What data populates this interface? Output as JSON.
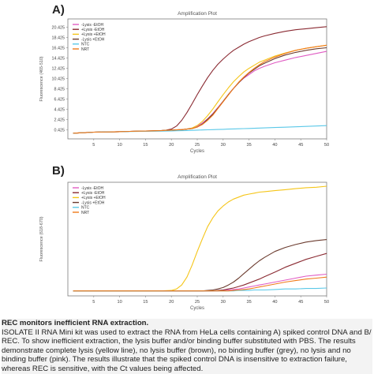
{
  "chart_data": [
    {
      "panel_label": "A)",
      "type": "line",
      "title": "Amplification Plot",
      "xlabel": "Cycles",
      "ylabel": "Fluorescence (465-510)",
      "xlim": [
        0,
        50
      ],
      "ylim": [
        -1.3,
        22
      ],
      "xticks": [
        "5",
        "10",
        "15",
        "20",
        "25",
        "30",
        "35",
        "40",
        "45",
        "50"
      ],
      "yticks": [
        "0.425",
        "2.425",
        "4.425",
        "6.425",
        "8.425",
        "10.425",
        "12.425",
        "14.425",
        "16.425",
        "18.425",
        "20.425"
      ],
      "legend_position": "top-left",
      "x": [
        1,
        3,
        5,
        8,
        10,
        12,
        14,
        16,
        18,
        19,
        20,
        21,
        22,
        23,
        24,
        25,
        26,
        27,
        28,
        29,
        30,
        31,
        32,
        33,
        34,
        35,
        36,
        37,
        38,
        40,
        42,
        44,
        46,
        48,
        50
      ],
      "series": [
        {
          "name": "-Lysis -EtOH",
          "color": "#e05cc3",
          "values": [
            -0.2,
            -0.1,
            0,
            0.05,
            0.1,
            0.15,
            0.2,
            0.25,
            0.3,
            0.35,
            0.4,
            0.45,
            0.5,
            0.6,
            0.8,
            1.2,
            1.8,
            2.6,
            3.6,
            4.8,
            6.0,
            7.3,
            8.5,
            9.6,
            10.5,
            11.2,
            11.9,
            12.4,
            12.8,
            13.5,
            14.0,
            14.5,
            14.9,
            15.3,
            15.7
          ]
        },
        {
          "name": "+Lysis -EtOH",
          "color": "#8a2a32",
          "values": [
            -0.2,
            -0.1,
            0,
            0.05,
            0.1,
            0.15,
            0.2,
            0.25,
            0.3,
            0.4,
            0.6,
            1.2,
            2.3,
            3.8,
            5.5,
            7.3,
            9.0,
            10.6,
            12.0,
            13.2,
            14.2,
            15.1,
            15.9,
            16.5,
            17.1,
            17.6,
            18.0,
            18.4,
            18.7,
            19.2,
            19.6,
            19.9,
            20.1,
            20.3,
            20.5
          ]
        },
        {
          "name": "+Lysis +EtOH",
          "color": "#f5c518",
          "values": [
            -0.2,
            -0.1,
            0,
            0.05,
            0.1,
            0.15,
            0.2,
            0.25,
            0.3,
            0.35,
            0.4,
            0.45,
            0.5,
            0.6,
            0.8,
            1.3,
            2.1,
            3.2,
            4.5,
            5.9,
            7.3,
            8.6,
            9.8,
            10.8,
            11.7,
            12.4,
            13.0,
            13.6,
            14.0,
            14.8,
            15.4,
            15.9,
            16.3,
            16.6,
            16.9
          ]
        },
        {
          "name": "-Lysis +EtOH",
          "color": "#6b3b2e",
          "values": [
            -0.2,
            -0.1,
            0,
            0.05,
            0.1,
            0.15,
            0.2,
            0.25,
            0.3,
            0.35,
            0.4,
            0.45,
            0.5,
            0.6,
            0.7,
            1.0,
            1.6,
            2.5,
            3.5,
            4.7,
            6.0,
            7.3,
            8.5,
            9.6,
            10.6,
            11.5,
            12.2,
            12.9,
            13.4,
            14.3,
            15.0,
            15.5,
            15.9,
            16.2,
            16.4
          ]
        },
        {
          "name": "NTC",
          "color": "#5bc8e8",
          "values": [
            -0.2,
            -0.1,
            0,
            0.05,
            0.1,
            0.12,
            0.15,
            0.18,
            0.2,
            0.22,
            0.25,
            0.28,
            0.3,
            0.33,
            0.36,
            0.4,
            0.43,
            0.46,
            0.5,
            0.53,
            0.56,
            0.6,
            0.63,
            0.66,
            0.7,
            0.73,
            0.76,
            0.8,
            0.83,
            0.9,
            0.97,
            1.05,
            1.12,
            1.2,
            1.28
          ]
        },
        {
          "name": "NRT",
          "color": "#f07a1a",
          "values": [
            -0.2,
            -0.1,
            0,
            0.05,
            0.1,
            0.15,
            0.2,
            0.25,
            0.3,
            0.35,
            0.4,
            0.45,
            0.5,
            0.6,
            0.7,
            1.0,
            1.5,
            2.3,
            3.3,
            4.6,
            5.9,
            7.2,
            8.5,
            9.7,
            10.7,
            11.6,
            12.4,
            13.1,
            13.7,
            14.6,
            15.3,
            15.9,
            16.3,
            16.6,
            16.9
          ]
        }
      ]
    },
    {
      "panel_label": "B)",
      "type": "line",
      "title": "Amplification Plot",
      "xlabel": "Cycles",
      "ylabel": "Fluorescence (618-670)",
      "xlim": [
        0,
        50
      ],
      "ylim": [
        -0.5,
        11
      ],
      "xticks": [
        "5",
        "10",
        "15",
        "20",
        "25",
        "30",
        "35",
        "40",
        "45",
        "50"
      ],
      "legend_position": "top-left",
      "x": [
        1,
        3,
        5,
        8,
        10,
        12,
        14,
        16,
        18,
        20,
        21,
        22,
        23,
        24,
        25,
        26,
        27,
        28,
        29,
        30,
        31,
        32,
        33,
        34,
        35,
        36,
        37,
        38,
        40,
        42,
        44,
        46,
        48,
        50
      ],
      "series": [
        {
          "name": "-Lysis -EtOH",
          "color": "#e05cc3",
          "values": [
            0,
            0,
            0,
            0,
            0,
            0,
            0,
            0,
            0,
            0,
            0,
            0,
            0,
            0,
            0,
            0,
            0,
            0,
            0,
            0.05,
            0.1,
            0.15,
            0.2,
            0.3,
            0.4,
            0.5,
            0.6,
            0.7,
            0.9,
            1.1,
            1.3,
            1.5,
            1.6,
            1.7
          ]
        },
        {
          "name": "+Lysis -EtOH",
          "color": "#8a2a32",
          "values": [
            0,
            0,
            0,
            0,
            0,
            0,
            0,
            0,
            0,
            0,
            0,
            0,
            0,
            0,
            0,
            0,
            0,
            0,
            0.05,
            0.1,
            0.2,
            0.3,
            0.45,
            0.6,
            0.8,
            1.0,
            1.2,
            1.45,
            1.9,
            2.4,
            2.8,
            3.2,
            3.5,
            3.8
          ]
        },
        {
          "name": "+Lysis +EtOH",
          "color": "#f5c518",
          "values": [
            0,
            0,
            0,
            0,
            0,
            0,
            0,
            0,
            0,
            0.05,
            0.2,
            0.6,
            1.4,
            2.6,
            4.0,
            5.3,
            6.5,
            7.4,
            8.1,
            8.6,
            9.0,
            9.3,
            9.5,
            9.7,
            9.8,
            9.9,
            10.0,
            10.05,
            10.15,
            10.25,
            10.35,
            10.45,
            10.5,
            10.6
          ]
        },
        {
          "name": "-Lysis +EtOH",
          "color": "#6b3b2e",
          "values": [
            0,
            0,
            0,
            0,
            0,
            0,
            0,
            0,
            0,
            0,
            0,
            0,
            0,
            0,
            0,
            0,
            0.05,
            0.1,
            0.2,
            0.35,
            0.6,
            0.9,
            1.3,
            1.75,
            2.2,
            2.65,
            3.05,
            3.4,
            4.0,
            4.4,
            4.7,
            4.95,
            5.1,
            5.2
          ]
        },
        {
          "name": "NTC",
          "color": "#5bc8e8",
          "values": [
            0,
            0,
            0,
            0,
            0,
            0,
            0,
            0,
            0,
            0,
            0,
            0,
            0,
            0,
            0,
            0,
            0,
            0,
            0,
            0,
            0,
            0,
            0.05,
            0.05,
            0.05,
            0.1,
            0.1,
            0.1,
            0.15,
            0.2,
            0.2,
            0.25,
            0.25,
            0.3
          ]
        },
        {
          "name": "NRT",
          "color": "#f07a1a",
          "values": [
            0,
            0,
            0,
            0,
            0,
            0,
            0,
            0,
            0,
            0,
            0,
            0,
            0,
            0,
            0,
            0,
            0,
            0,
            0,
            0,
            0,
            0.05,
            0.1,
            0.15,
            0.2,
            0.3,
            0.4,
            0.5,
            0.7,
            0.9,
            1.05,
            1.2,
            1.3,
            1.4
          ]
        }
      ]
    }
  ],
  "caption": {
    "title": "REC monitors inefficient RNA extraction.",
    "body": "ISOLATE II RNA Mini kit was used to extract the RNA from HeLa cells containing A) spiked control DNA and B/ REC. To show inefficient extraction, the lysis buffer and/or binding buffer substituted with PBS. The results demonstrate complete lysis (yellow line), no lysis buffer (brown), no binding buffer (grey), no lysis and no binding buffer (pink). The results illustrate that the spiked control DNA is insensitive to extraction failure, whereas REC is sensitive, with the Ct values being affected."
  }
}
